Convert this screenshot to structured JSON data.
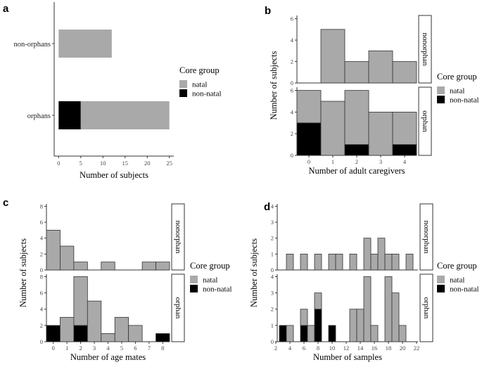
{
  "colors": {
    "natal": "#a9a9a9",
    "non_natal": "#000000",
    "outline": "#333333"
  },
  "chart_data": [
    {
      "panel": "a",
      "type": "bar",
      "orientation": "horizontal",
      "stacked": true,
      "categories": [
        "non-orphans",
        "orphans"
      ],
      "series": [
        {
          "name": "non-natal",
          "values": [
            0,
            5
          ]
        },
        {
          "name": "natal",
          "values": [
            12,
            20
          ]
        }
      ],
      "xlabel": "Number of subjects",
      "xlim": [
        -1,
        26
      ],
      "xticks": [
        0,
        5,
        10,
        15,
        20,
        25
      ],
      "legend_title": "Core group",
      "legend_entries": [
        "natal",
        "non-natal"
      ],
      "legend_position": "right"
    },
    {
      "panel": "b",
      "type": "bar",
      "stacked": true,
      "facets": [
        "nonorphan",
        "orphan"
      ],
      "xlabel": "Number of adult caregivers",
      "ylabel": "Number of subjects",
      "xticks": [
        0,
        1,
        2,
        3,
        4
      ],
      "xlim": [
        -0.5,
        4.5
      ],
      "yticks": [
        0,
        2,
        4,
        6
      ],
      "ylim": [
        0,
        6.3
      ],
      "data": {
        "nonorphan": {
          "x": [
            1,
            2,
            3,
            4
          ],
          "natal": [
            5,
            2,
            3,
            2
          ],
          "non_natal": [
            0,
            0,
            0,
            0
          ]
        },
        "orphan": {
          "x": [
            0,
            1,
            2,
            3,
            4
          ],
          "natal": [
            3,
            5,
            5,
            4,
            3
          ],
          "non_natal": [
            3,
            0,
            1,
            0,
            1
          ]
        }
      },
      "legend_title": "Core group",
      "legend_entries": [
        "natal",
        "non-natal"
      ],
      "legend_position": "right"
    },
    {
      "panel": "c",
      "type": "bar",
      "stacked": true,
      "facets": [
        "nonorphan",
        "orphan"
      ],
      "xlabel": "Number of age mates",
      "ylabel": "Number of subjects",
      "xticks": [
        0,
        1,
        2,
        3,
        4,
        5,
        6,
        7,
        8
      ],
      "xlim": [
        -0.5,
        8.5
      ],
      "yticks": [
        0,
        2,
        4,
        6,
        8
      ],
      "ylim": [
        0,
        8.3
      ],
      "data": {
        "nonorphan": {
          "x": [
            0,
            1,
            2,
            4,
            7,
            8
          ],
          "natal": [
            5,
            3,
            1,
            1,
            1,
            1
          ],
          "non_natal": [
            0,
            0,
            0,
            0,
            0,
            0
          ]
        },
        "orphan": {
          "x": [
            0,
            1,
            2,
            3,
            4,
            5,
            6,
            8
          ],
          "natal": [
            0,
            3,
            6,
            5,
            1,
            3,
            2,
            0
          ],
          "non_natal": [
            2,
            0,
            2,
            0,
            0,
            0,
            0,
            1
          ]
        }
      },
      "legend_title": "Core group",
      "legend_entries": [
        "natal",
        "non-natal"
      ],
      "legend_position": "right"
    },
    {
      "panel": "d",
      "type": "bar",
      "stacked": true,
      "facets": [
        "nonorphan",
        "orphan"
      ],
      "xlabel": "Number of samples",
      "ylabel": "Number of subjects",
      "xticks": [
        2,
        4,
        6,
        8,
        10,
        12,
        14,
        16,
        18,
        20,
        22
      ],
      "xlim": [
        2.2,
        22.2
      ],
      "yticks": [
        0,
        1,
        2,
        3,
        4
      ],
      "ylim": [
        0,
        4.15
      ],
      "data": {
        "nonorphan": {
          "x": [
            4,
            6,
            8,
            10,
            11,
            13,
            15,
            16,
            17,
            18,
            19,
            21
          ],
          "natal": [
            1,
            1,
            1,
            1,
            1,
            1,
            2,
            1,
            2,
            1,
            1,
            1
          ],
          "non_natal": [
            0,
            0,
            0,
            0,
            0,
            0,
            0,
            0,
            0,
            0,
            0,
            0
          ]
        },
        "orphan": {
          "x": [
            3,
            4,
            6,
            7,
            8,
            10,
            13,
            14,
            15,
            16,
            18,
            19,
            20
          ],
          "natal": [
            0,
            1,
            1,
            1,
            1,
            0,
            2,
            2,
            4,
            1,
            4,
            3,
            1
          ],
          "non_natal": [
            1,
            0,
            1,
            0,
            2,
            1,
            0,
            0,
            0,
            0,
            0,
            0,
            0
          ]
        }
      },
      "legend_title": "Core group",
      "legend_entries": [
        "natal",
        "non-natal"
      ],
      "legend_position": "right"
    }
  ]
}
